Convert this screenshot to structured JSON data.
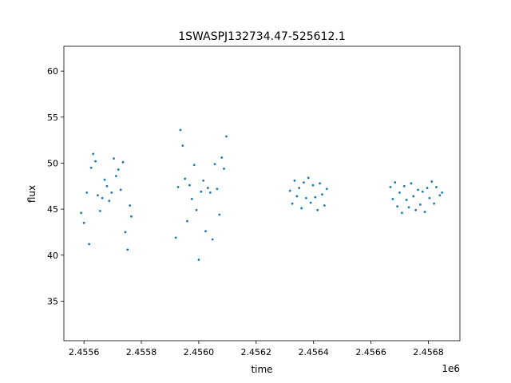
{
  "chart_data": {
    "type": "scatter",
    "title": "1SWASPJ132734.47-525612.1",
    "xlabel": "time",
    "ylabel": "flux",
    "x_offset_label": "1e6",
    "xlim": [
      2455530,
      2456910
    ],
    "ylim": [
      30.7,
      62.7
    ],
    "x_ticks": [
      2455600,
      2455800,
      2456000,
      2456200,
      2456400,
      2456600,
      2456800
    ],
    "x_tick_labels": [
      "2.4556",
      "2.4558",
      "2.4560",
      "2.4562",
      "2.4564",
      "2.4566",
      "2.4568"
    ],
    "y_ticks": [
      35,
      40,
      45,
      50,
      55,
      60
    ],
    "y_tick_labels": [
      "35",
      "40",
      "45",
      "50",
      "55",
      "60"
    ],
    "grid": false,
    "legend": "none",
    "marker_color": "#1f77b4",
    "series": [
      {
        "values": [
          [
            2455590,
            44.6
          ],
          [
            2455600,
            43.5
          ],
          [
            2455610,
            46.8
          ],
          [
            2455618,
            41.2
          ],
          [
            2455625,
            49.5
          ],
          [
            2455632,
            51.0
          ],
          [
            2455640,
            50.2
          ],
          [
            2455648,
            46.5
          ],
          [
            2455656,
            44.8
          ],
          [
            2455664,
            46.2
          ],
          [
            2455672,
            48.2
          ],
          [
            2455680,
            47.5
          ],
          [
            2455688,
            45.9
          ],
          [
            2455696,
            46.8
          ],
          [
            2455704,
            50.5
          ],
          [
            2455712,
            48.6
          ],
          [
            2455720,
            49.3
          ],
          [
            2455728,
            47.1
          ],
          [
            2455736,
            50.1
          ],
          [
            2455744,
            42.5
          ],
          [
            2455752,
            40.6
          ],
          [
            2455760,
            45.4
          ],
          [
            2455765,
            44.2
          ],
          [
            2455920,
            41.9
          ],
          [
            2455928,
            47.4
          ],
          [
            2455936,
            53.6
          ],
          [
            2455944,
            51.9
          ],
          [
            2455952,
            48.3
          ],
          [
            2455960,
            43.7
          ],
          [
            2455968,
            47.6
          ],
          [
            2455976,
            46.1
          ],
          [
            2455984,
            49.8
          ],
          [
            2455992,
            44.9
          ],
          [
            2456000,
            39.5
          ],
          [
            2456008,
            46.9
          ],
          [
            2456016,
            48.1
          ],
          [
            2456024,
            42.6
          ],
          [
            2456032,
            47.3
          ],
          [
            2456040,
            46.8
          ],
          [
            2456048,
            41.7
          ],
          [
            2456056,
            49.9
          ],
          [
            2456064,
            47.2
          ],
          [
            2456072,
            44.4
          ],
          [
            2456080,
            50.6
          ],
          [
            2456088,
            49.4
          ],
          [
            2456096,
            52.9
          ],
          [
            2456318,
            47.0
          ],
          [
            2456326,
            45.6
          ],
          [
            2456334,
            48.1
          ],
          [
            2456342,
            46.4
          ],
          [
            2456350,
            47.3
          ],
          [
            2456358,
            45.1
          ],
          [
            2456366,
            47.9
          ],
          [
            2456374,
            46.2
          ],
          [
            2456382,
            48.4
          ],
          [
            2456390,
            45.7
          ],
          [
            2456398,
            47.6
          ],
          [
            2456406,
            46.3
          ],
          [
            2456414,
            44.9
          ],
          [
            2456422,
            47.8
          ],
          [
            2456430,
            46.6
          ],
          [
            2456438,
            45.4
          ],
          [
            2456446,
            47.2
          ],
          [
            2456668,
            47.4
          ],
          [
            2456676,
            46.1
          ],
          [
            2456684,
            47.9
          ],
          [
            2456692,
            45.3
          ],
          [
            2456700,
            46.8
          ],
          [
            2456708,
            44.6
          ],
          [
            2456716,
            47.5
          ],
          [
            2456724,
            46.0
          ],
          [
            2456732,
            45.2
          ],
          [
            2456740,
            47.8
          ],
          [
            2456748,
            46.4
          ],
          [
            2456756,
            44.9
          ],
          [
            2456764,
            47.1
          ],
          [
            2456772,
            45.5
          ],
          [
            2456780,
            46.9
          ],
          [
            2456788,
            44.7
          ],
          [
            2456796,
            47.3
          ],
          [
            2456804,
            46.2
          ],
          [
            2456812,
            48.0
          ],
          [
            2456820,
            45.6
          ],
          [
            2456828,
            47.4
          ],
          [
            2456840,
            46.5
          ],
          [
            2456848,
            46.8
          ]
        ]
      }
    ]
  }
}
